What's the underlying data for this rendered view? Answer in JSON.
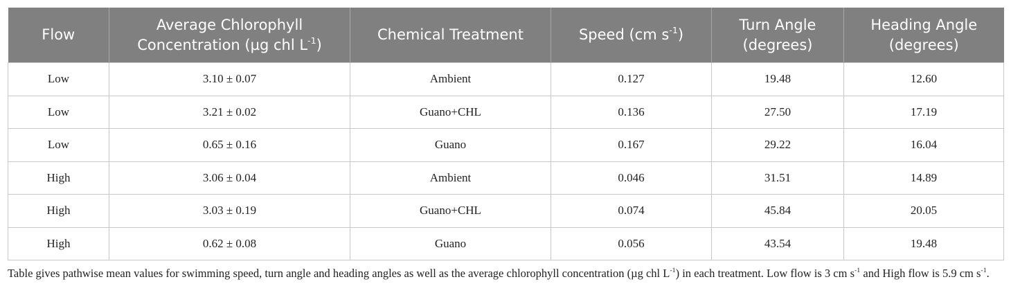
{
  "table": {
    "header": [
      [
        [
          {
            "text": "Flow"
          }
        ]
      ],
      [
        [
          {
            "text": "Average Chlorophyll"
          }
        ],
        [
          {
            "text": "Concentration (µg chl L"
          },
          {
            "sup": "-1"
          },
          {
            "text": ")"
          }
        ]
      ],
      [
        [
          {
            "text": "Chemical Treatment"
          }
        ]
      ],
      [
        [
          {
            "text": "Speed (cm s"
          },
          {
            "sup": "-1"
          },
          {
            "text": ")"
          }
        ]
      ],
      [
        [
          {
            "text": "Turn Angle"
          }
        ],
        [
          {
            "text": "(degrees)"
          }
        ]
      ],
      [
        [
          {
            "text": "Heading Angle"
          }
        ],
        [
          {
            "text": "(degrees)"
          }
        ]
      ]
    ],
    "rows": [
      [
        "Low",
        "3.10 ± 0.07",
        "Ambient",
        "0.127",
        "19.48",
        "12.60"
      ],
      [
        "Low",
        "3.21 ± 0.02",
        "Guano+CHL",
        "0.136",
        "27.50",
        "17.19"
      ],
      [
        "Low",
        "0.65 ± 0.16",
        "Guano",
        "0.167",
        "29.22",
        "16.04"
      ],
      [
        "High",
        "3.06 ± 0.04",
        "Ambient",
        "0.046",
        "31.51",
        "14.89"
      ],
      [
        "High",
        "3.03 ± 0.19",
        "Guano+CHL",
        "0.074",
        "45.84",
        "20.05"
      ],
      [
        "High",
        "0.62 ± 0.08",
        "Guano",
        "0.056",
        "43.54",
        "19.48"
      ]
    ]
  },
  "caption": [
    {
      "text": "Table gives pathwise mean values for swimming speed, turn angle and heading angles as well as the average chlorophyll concentration (µg chl L"
    },
    {
      "sup": "-1"
    },
    {
      "text": ") in each treatment. Low flow is 3 cm s"
    },
    {
      "sup": "-1"
    },
    {
      "text": " and High flow is 5.9 cm s"
    },
    {
      "sup": "-1"
    },
    {
      "text": "."
    }
  ]
}
